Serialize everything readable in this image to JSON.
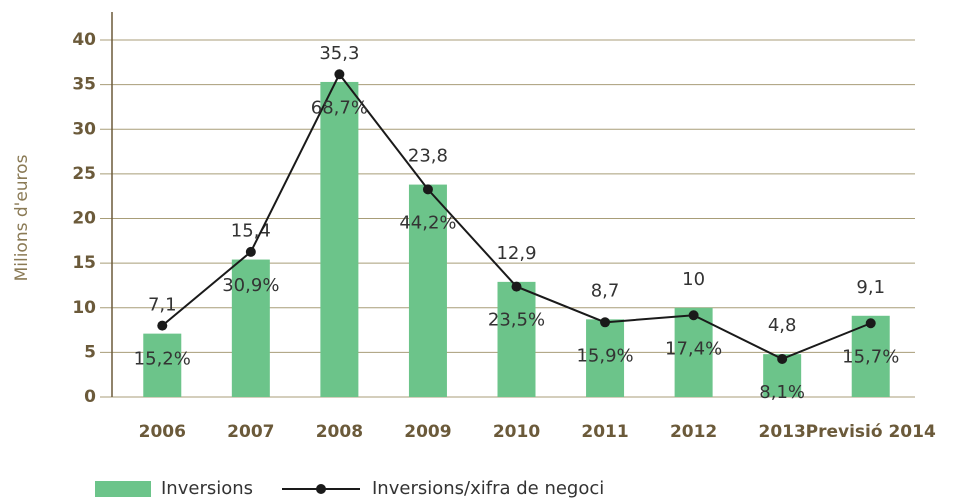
{
  "chart_data": {
    "type": "bar_line",
    "y_axis_label": "Milions d'euros",
    "categories": [
      "2006",
      "2007",
      "2008",
      "2009",
      "2010",
      "2011",
      "2012",
      "2013",
      "Previsió 2014"
    ],
    "series": [
      {
        "name": "Inversions",
        "type": "bar",
        "color": "#6cc48a",
        "values": [
          7.1,
          15.4,
          35.3,
          23.8,
          12.9,
          8.7,
          10,
          4.8,
          9.1
        ],
        "value_labels": [
          "7,1",
          "15,4",
          "35,3",
          "23,8",
          "12,9",
          "8,7",
          "10",
          "4,8",
          "9,1"
        ]
      },
      {
        "name": "Inversions/xifra de negoci",
        "type": "line",
        "axis": "y2",
        "color": "#1a1a1a",
        "values": [
          15.2,
          30.9,
          68.7,
          44.2,
          23.5,
          15.9,
          17.4,
          8.1,
          15.7
        ],
        "value_labels": [
          "15,2%",
          "30,9%",
          "68,7%",
          "44,2%",
          "23,5%",
          "15,9%",
          "17,4%",
          "8,1%",
          "15,7%"
        ]
      }
    ],
    "ylim": [
      0,
      40
    ],
    "yticks": [
      0,
      5,
      10,
      15,
      20,
      25,
      30,
      35,
      40
    ],
    "y2lim": [
      0,
      76
    ],
    "grid": true
  }
}
